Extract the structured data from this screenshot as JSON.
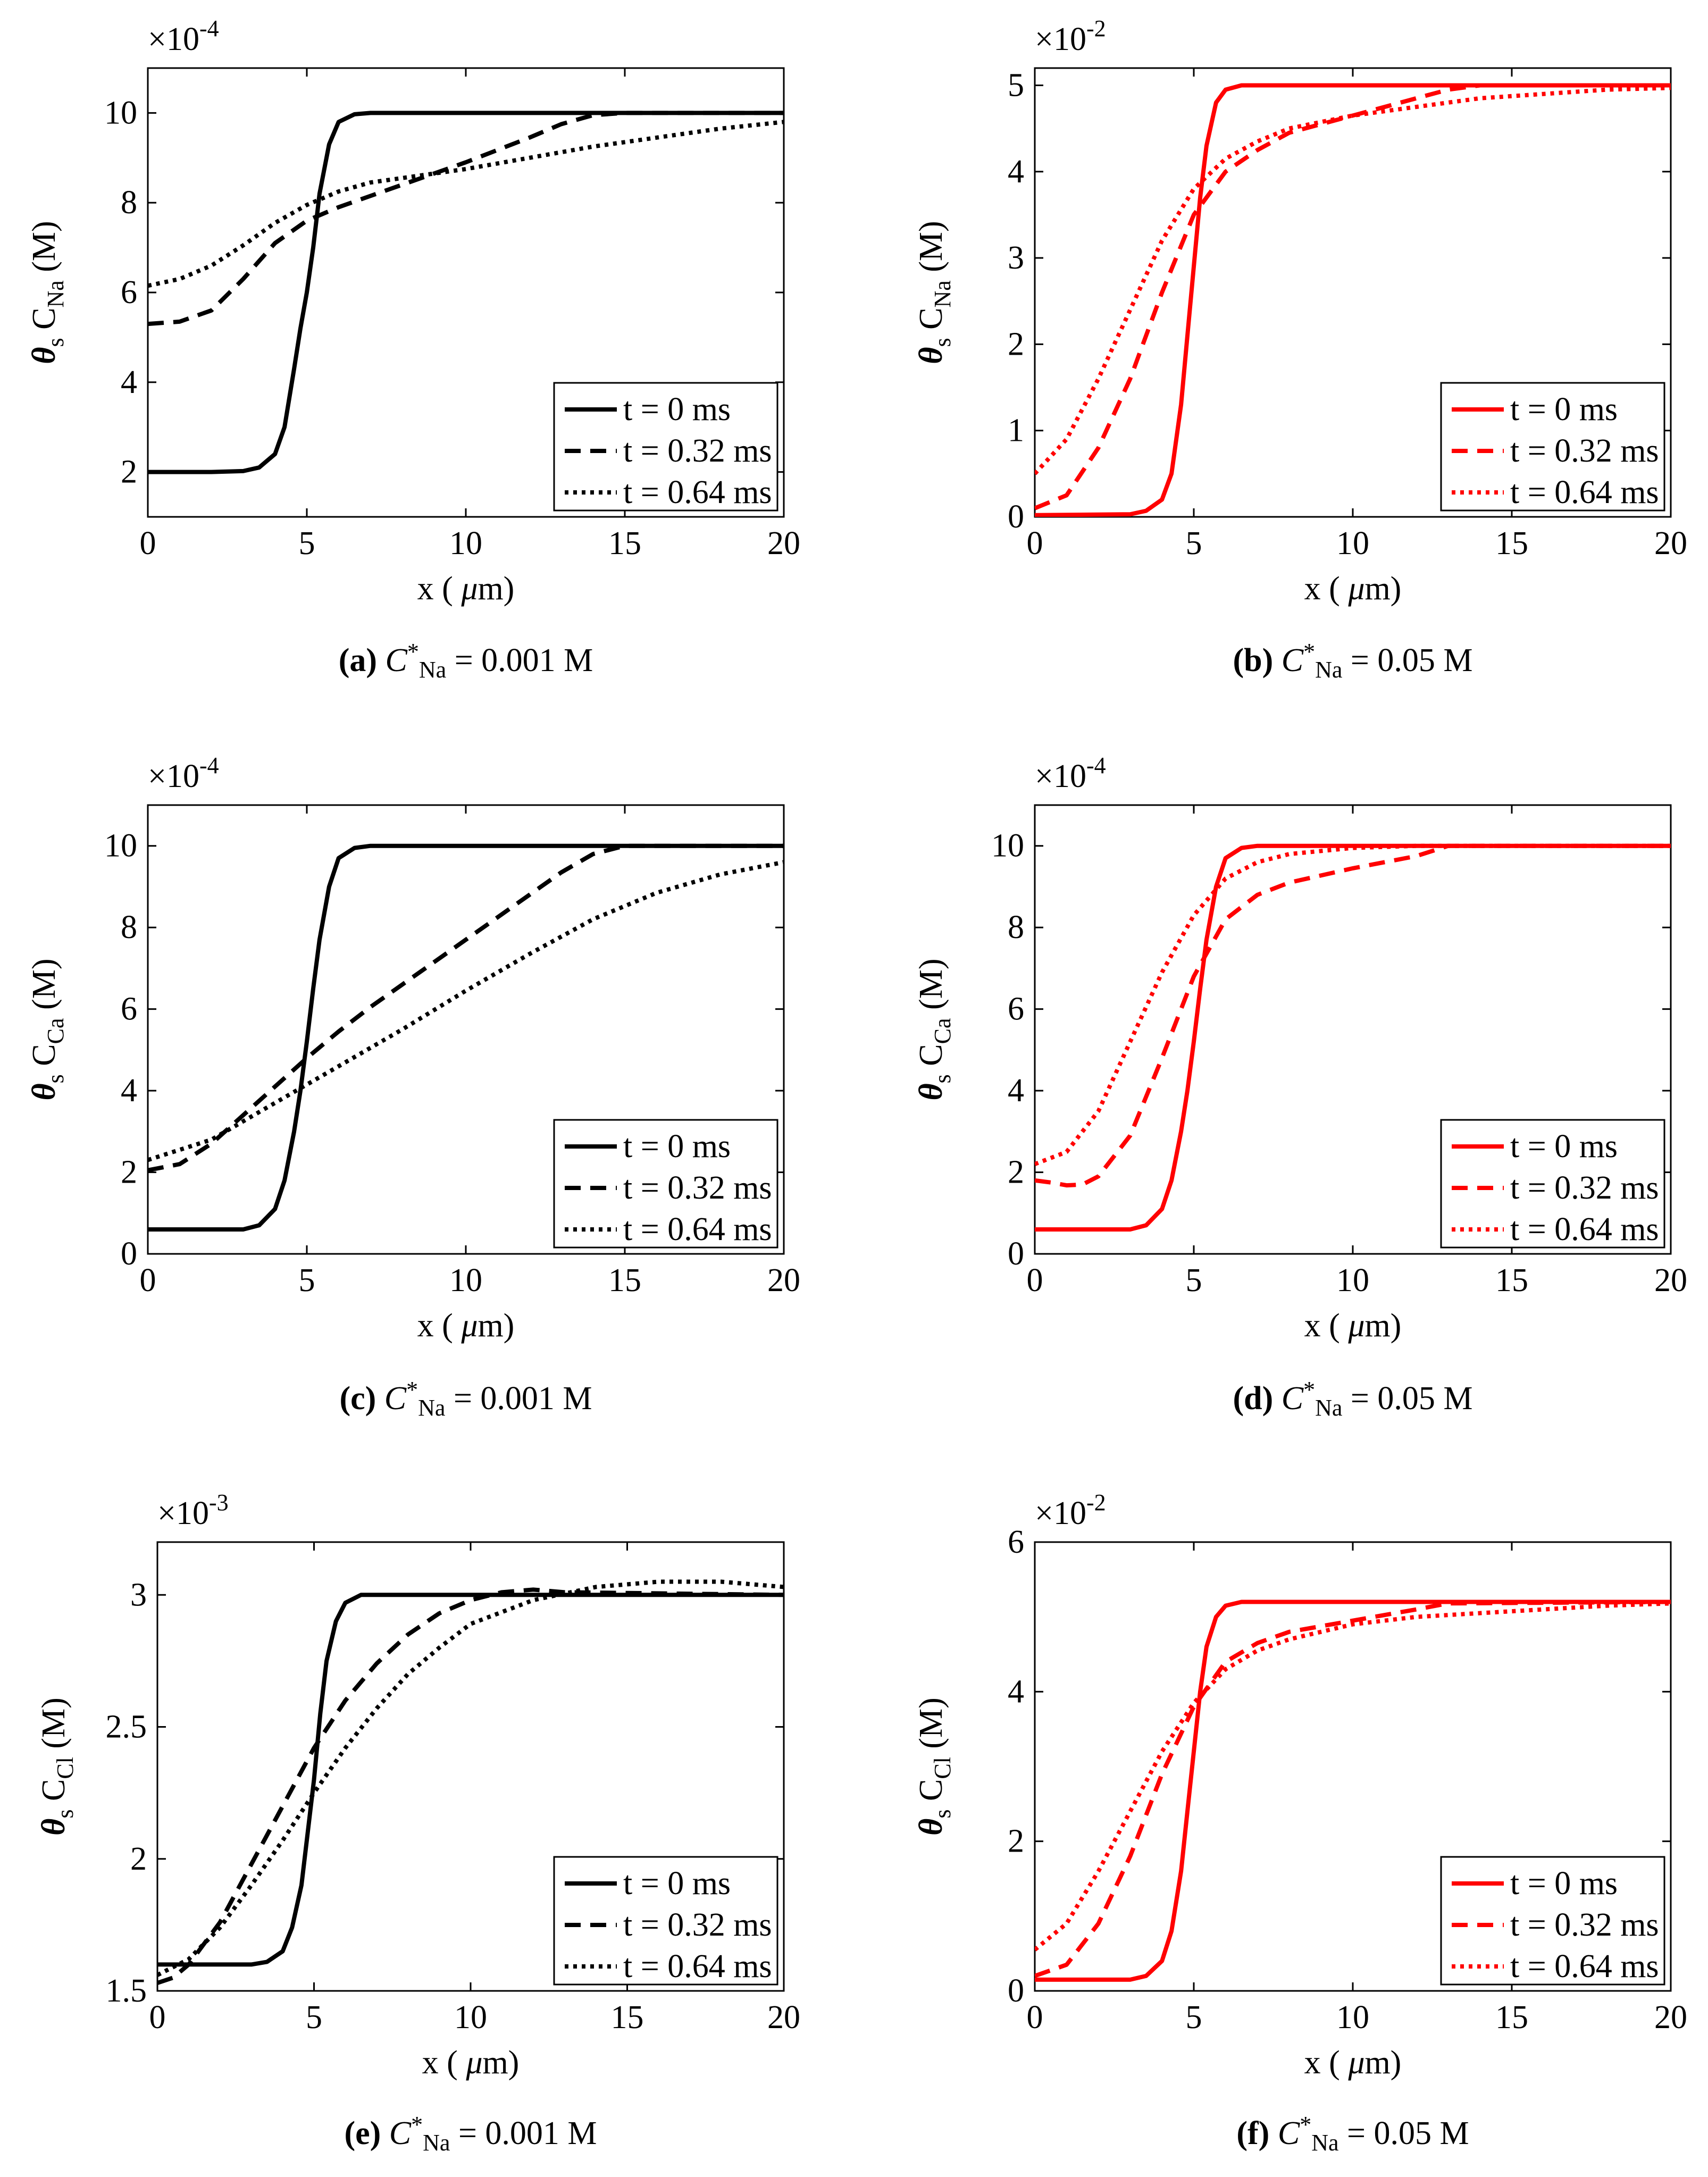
{
  "figure": {
    "legend_labels": [
      "t = 0 ms",
      "t = 0.32 ms",
      "t = 0.64 ms"
    ],
    "line_styles": [
      "solid",
      "dashed",
      "dotted"
    ]
  },
  "chart_data": [
    {
      "id": "a",
      "type": "line",
      "color": "#000000",
      "caption": {
        "label": "(a)",
        "var": "C",
        "sub": "Na",
        "sup": "*",
        "eq": "= 0.001 M"
      },
      "ylabel": {
        "prefix": "θ",
        "s": "s",
        "C": "C",
        "ion": "Na",
        "unit": "(M)"
      },
      "xlabel": {
        "pre": "x (",
        "mu": "μ",
        "post": "m)"
      },
      "exponent": "×10",
      "exponent_power": "-4",
      "xlim": [
        0,
        20
      ],
      "ylim": [
        1,
        11
      ],
      "xticks": [
        0,
        5,
        10,
        15,
        20
      ],
      "yticks": [
        2,
        4,
        6,
        8,
        10
      ],
      "ytick_labels": [
        "2",
        "4",
        "6",
        "8",
        "10"
      ],
      "legend_position": "lower-right",
      "series": [
        {
          "name": "t = 0 ms",
          "x": [
            0,
            2,
            3,
            3.5,
            4,
            4.3,
            4.6,
            4.8,
            5,
            5.2,
            5.4,
            5.7,
            6,
            6.5,
            7,
            8,
            20
          ],
          "y": [
            2,
            2,
            2.02,
            2.1,
            2.4,
            3.0,
            4.3,
            5.2,
            6.0,
            7.0,
            8.2,
            9.3,
            9.8,
            9.97,
            10,
            10,
            10
          ]
        },
        {
          "name": "t = 0.32 ms",
          "x": [
            0,
            1,
            2,
            3,
            4,
            5,
            6,
            8,
            10,
            12,
            13,
            14,
            15,
            20
          ],
          "y": [
            5.3,
            5.35,
            5.6,
            6.3,
            7.1,
            7.6,
            7.9,
            8.4,
            8.9,
            9.45,
            9.75,
            9.95,
            10,
            10
          ]
        },
        {
          "name": "t = 0.64 ms",
          "x": [
            0,
            1,
            2,
            3,
            4,
            5,
            6,
            7,
            8,
            10,
            12,
            14,
            16,
            18,
            20
          ],
          "y": [
            6.15,
            6.3,
            6.6,
            7.05,
            7.55,
            7.95,
            8.25,
            8.45,
            8.55,
            8.75,
            9.0,
            9.25,
            9.45,
            9.65,
            9.8
          ]
        }
      ]
    },
    {
      "id": "b",
      "type": "line",
      "color": "#ff0000",
      "caption": {
        "label": "(b)",
        "var": "C",
        "sub": "Na",
        "sup": "*",
        "eq": "= 0.05 M"
      },
      "ylabel": {
        "prefix": "θ",
        "s": "s",
        "C": "C",
        "ion": "Na",
        "unit": "(M)"
      },
      "xlabel": {
        "pre": "x (",
        "mu": "μ",
        "post": "m)"
      },
      "exponent": "×10",
      "exponent_power": "-2",
      "xlim": [
        0,
        20
      ],
      "ylim": [
        0,
        5.2
      ],
      "xticks": [
        0,
        5,
        10,
        15,
        20
      ],
      "yticks": [
        0,
        1,
        2,
        3,
        4,
        5
      ],
      "ytick_labels": [
        "0",
        "1",
        "2",
        "3",
        "4",
        "5"
      ],
      "legend_position": "lower-right",
      "series": [
        {
          "name": "t = 0 ms",
          "x": [
            0,
            3,
            3.5,
            4,
            4.3,
            4.6,
            4.8,
            5,
            5.2,
            5.4,
            5.7,
            6,
            6.5,
            7,
            20
          ],
          "y": [
            0.02,
            0.03,
            0.07,
            0.2,
            0.5,
            1.3,
            2.1,
            2.9,
            3.7,
            4.3,
            4.8,
            4.95,
            5,
            5,
            5
          ]
        },
        {
          "name": "t = 0.32 ms",
          "x": [
            0,
            1,
            2,
            3,
            4,
            5,
            6,
            7,
            8,
            10,
            12,
            13,
            14,
            20
          ],
          "y": [
            0.1,
            0.25,
            0.8,
            1.6,
            2.6,
            3.5,
            4.0,
            4.25,
            4.45,
            4.65,
            4.85,
            4.95,
            5,
            5
          ]
        },
        {
          "name": "t = 0.64 ms",
          "x": [
            0,
            1,
            2,
            3,
            4,
            5,
            6,
            7,
            8,
            10,
            12,
            14,
            16,
            18,
            20
          ],
          "y": [
            0.5,
            0.9,
            1.6,
            2.4,
            3.2,
            3.8,
            4.15,
            4.35,
            4.5,
            4.65,
            4.75,
            4.85,
            4.9,
            4.95,
            4.97
          ]
        }
      ]
    },
    {
      "id": "c",
      "type": "line",
      "color": "#000000",
      "caption": {
        "label": "(c)",
        "var": "C",
        "sub": "Na",
        "sup": "*",
        "eq": "= 0.001 M"
      },
      "ylabel": {
        "prefix": "θ",
        "s": "s",
        "C": "C",
        "ion": "Ca",
        "unit": "(M)"
      },
      "xlabel": {
        "pre": "x (",
        "mu": "μ",
        "post": "m)"
      },
      "exponent": "×10",
      "exponent_power": "-4",
      "xlim": [
        0,
        20
      ],
      "ylim": [
        0,
        11
      ],
      "xticks": [
        0,
        5,
        10,
        15,
        20
      ],
      "yticks": [
        0,
        2,
        4,
        6,
        8,
        10
      ],
      "ytick_labels": [
        "0",
        "2",
        "4",
        "6",
        "8",
        "10"
      ],
      "legend_position": "lower-right",
      "series": [
        {
          "name": "t = 0 ms",
          "x": [
            0,
            3,
            3.5,
            4,
            4.3,
            4.6,
            4.8,
            5,
            5.2,
            5.4,
            5.7,
            6,
            6.5,
            7,
            20
          ],
          "y": [
            0.6,
            0.6,
            0.7,
            1.1,
            1.8,
            3.0,
            4.0,
            5.2,
            6.5,
            7.7,
            9.0,
            9.7,
            9.95,
            10,
            10
          ]
        },
        {
          "name": "t = 0.32 ms",
          "x": [
            0,
            1,
            2,
            3,
            4,
            5,
            6,
            7,
            8,
            9,
            10,
            11,
            12,
            13,
            14,
            15,
            20
          ],
          "y": [
            2.05,
            2.2,
            2.7,
            3.4,
            4.1,
            4.8,
            5.45,
            6.05,
            6.6,
            7.15,
            7.7,
            8.25,
            8.8,
            9.35,
            9.8,
            10,
            10
          ]
        },
        {
          "name": "t = 0.64 ms",
          "x": [
            0,
            2,
            4,
            6,
            8,
            10,
            12,
            14,
            16,
            18,
            20
          ],
          "y": [
            2.3,
            2.8,
            3.7,
            4.6,
            5.5,
            6.45,
            7.35,
            8.2,
            8.85,
            9.3,
            9.6
          ]
        }
      ]
    },
    {
      "id": "d",
      "type": "line",
      "color": "#ff0000",
      "caption": {
        "label": "(d)",
        "var": "C",
        "sub": "Na",
        "sup": "*",
        "eq": "= 0.05 M"
      },
      "ylabel": {
        "prefix": "θ",
        "s": "s",
        "C": "C",
        "ion": "Ca",
        "unit": "(M)"
      },
      "xlabel": {
        "pre": "x (",
        "mu": "μ",
        "post": "m)"
      },
      "exponent": "×10",
      "exponent_power": "-4",
      "xlim": [
        0,
        20
      ],
      "ylim": [
        0,
        11
      ],
      "xticks": [
        0,
        5,
        10,
        15,
        20
      ],
      "yticks": [
        0,
        2,
        4,
        6,
        8,
        10
      ],
      "ytick_labels": [
        "0",
        "2",
        "4",
        "6",
        "8",
        "10"
      ],
      "legend_position": "lower-right",
      "series": [
        {
          "name": "t = 0 ms",
          "x": [
            0,
            3,
            3.5,
            4,
            4.3,
            4.6,
            4.8,
            5,
            5.2,
            5.4,
            5.7,
            6,
            6.5,
            7,
            20
          ],
          "y": [
            0.6,
            0.6,
            0.7,
            1.1,
            1.8,
            3.0,
            4.0,
            5.2,
            6.5,
            7.7,
            9.0,
            9.7,
            9.95,
            10,
            10
          ]
        },
        {
          "name": "t = 0.32 ms",
          "x": [
            0,
            0.5,
            1,
            1.5,
            2,
            3,
            4,
            5,
            6,
            7,
            8,
            10,
            12,
            13,
            20
          ],
          "y": [
            1.8,
            1.75,
            1.68,
            1.7,
            1.9,
            2.9,
            4.8,
            6.8,
            8.2,
            8.8,
            9.1,
            9.45,
            9.75,
            10,
            10
          ]
        },
        {
          "name": "t = 0.64 ms",
          "x": [
            0,
            1,
            2,
            3,
            4,
            5,
            6,
            7,
            8,
            10,
            12,
            14,
            20
          ],
          "y": [
            2.2,
            2.5,
            3.5,
            5.2,
            6.9,
            8.3,
            9.2,
            9.6,
            9.8,
            9.95,
            10,
            10,
            10
          ]
        }
      ]
    },
    {
      "id": "e",
      "type": "line",
      "color": "#000000",
      "caption": {
        "label": "(e)",
        "var": "C",
        "sub": "Na",
        "sup": "*",
        "eq": "= 0.001 M"
      },
      "ylabel": {
        "prefix": "θ",
        "s": "s",
        "C": "C",
        "ion": "Cl",
        "unit": "(M)"
      },
      "xlabel": {
        "pre": "x (",
        "mu": "μ",
        "post": "m)"
      },
      "exponent": "×10",
      "exponent_power": "-3",
      "xlim": [
        0,
        20
      ],
      "ylim": [
        1.5,
        3.2
      ],
      "xticks": [
        0,
        5,
        10,
        15,
        20
      ],
      "yticks": [
        1.5,
        2,
        2.5,
        3
      ],
      "ytick_labels": [
        "1.5",
        "2",
        "2.5",
        "3"
      ],
      "legend_position": "lower-right",
      "series": [
        {
          "name": "t = 0 ms",
          "x": [
            0,
            3,
            3.5,
            4,
            4.3,
            4.6,
            4.8,
            5,
            5.2,
            5.4,
            5.7,
            6,
            6.5,
            7,
            20
          ],
          "y": [
            1.6,
            1.6,
            1.61,
            1.65,
            1.74,
            1.9,
            2.1,
            2.3,
            2.55,
            2.75,
            2.9,
            2.97,
            3.0,
            3.0,
            3.0
          ]
        },
        {
          "name": "t = 0.32 ms",
          "x": [
            0,
            0.5,
            1,
            2,
            3,
            4,
            5,
            6,
            7,
            8,
            9,
            10,
            11,
            12,
            13,
            20
          ],
          "y": [
            1.53,
            1.55,
            1.6,
            1.76,
            1.98,
            2.2,
            2.42,
            2.6,
            2.74,
            2.85,
            2.93,
            2.98,
            3.01,
            3.02,
            3.01,
            3.0
          ]
        },
        {
          "name": "t = 0.64 ms",
          "x": [
            0,
            1,
            2,
            3,
            4,
            5,
            6,
            7,
            8,
            9,
            10,
            12,
            14,
            16,
            18,
            20
          ],
          "y": [
            1.56,
            1.62,
            1.74,
            1.9,
            2.07,
            2.25,
            2.42,
            2.57,
            2.7,
            2.8,
            2.89,
            2.98,
            3.03,
            3.05,
            3.05,
            3.03
          ]
        }
      ]
    },
    {
      "id": "f",
      "type": "line",
      "color": "#ff0000",
      "caption": {
        "label": "(f)",
        "var": "C",
        "sub": "Na",
        "sup": "*",
        "eq": "= 0.05 M"
      },
      "ylabel": {
        "prefix": "θ",
        "s": "s",
        "C": "C",
        "ion": "Cl",
        "unit": "(M)"
      },
      "xlabel": {
        "pre": "x (",
        "mu": "μ",
        "post": "m)"
      },
      "exponent": "×10",
      "exponent_power": "-2",
      "xlim": [
        0,
        20
      ],
      "ylim": [
        0,
        6
      ],
      "xticks": [
        0,
        5,
        10,
        15,
        20
      ],
      "yticks": [
        0,
        2,
        4,
        6
      ],
      "ytick_labels": [
        "0",
        "2",
        "4",
        "6"
      ],
      "legend_position": "lower-right",
      "series": [
        {
          "name": "t = 0 ms",
          "x": [
            0,
            3,
            3.5,
            4,
            4.3,
            4.6,
            4.8,
            5,
            5.2,
            5.4,
            5.7,
            6,
            6.5,
            7,
            20
          ],
          "y": [
            0.15,
            0.15,
            0.2,
            0.4,
            0.8,
            1.6,
            2.4,
            3.2,
            4.0,
            4.6,
            5.0,
            5.15,
            5.2,
            5.2,
            5.2
          ]
        },
        {
          "name": "t = 0.32 ms",
          "x": [
            0,
            1,
            2,
            3,
            4,
            5,
            6,
            7,
            8,
            10,
            12,
            13,
            20
          ],
          "y": [
            0.2,
            0.35,
            0.9,
            1.8,
            2.9,
            3.8,
            4.4,
            4.65,
            4.8,
            4.95,
            5.1,
            5.18,
            5.2
          ]
        },
        {
          "name": "t = 0.64 ms",
          "x": [
            0,
            1,
            2,
            3,
            4,
            5,
            6,
            7,
            8,
            10,
            12,
            14,
            16,
            18,
            20
          ],
          "y": [
            0.55,
            0.9,
            1.6,
            2.4,
            3.2,
            3.85,
            4.3,
            4.55,
            4.7,
            4.9,
            5.0,
            5.05,
            5.1,
            5.15,
            5.18
          ]
        }
      ]
    }
  ]
}
